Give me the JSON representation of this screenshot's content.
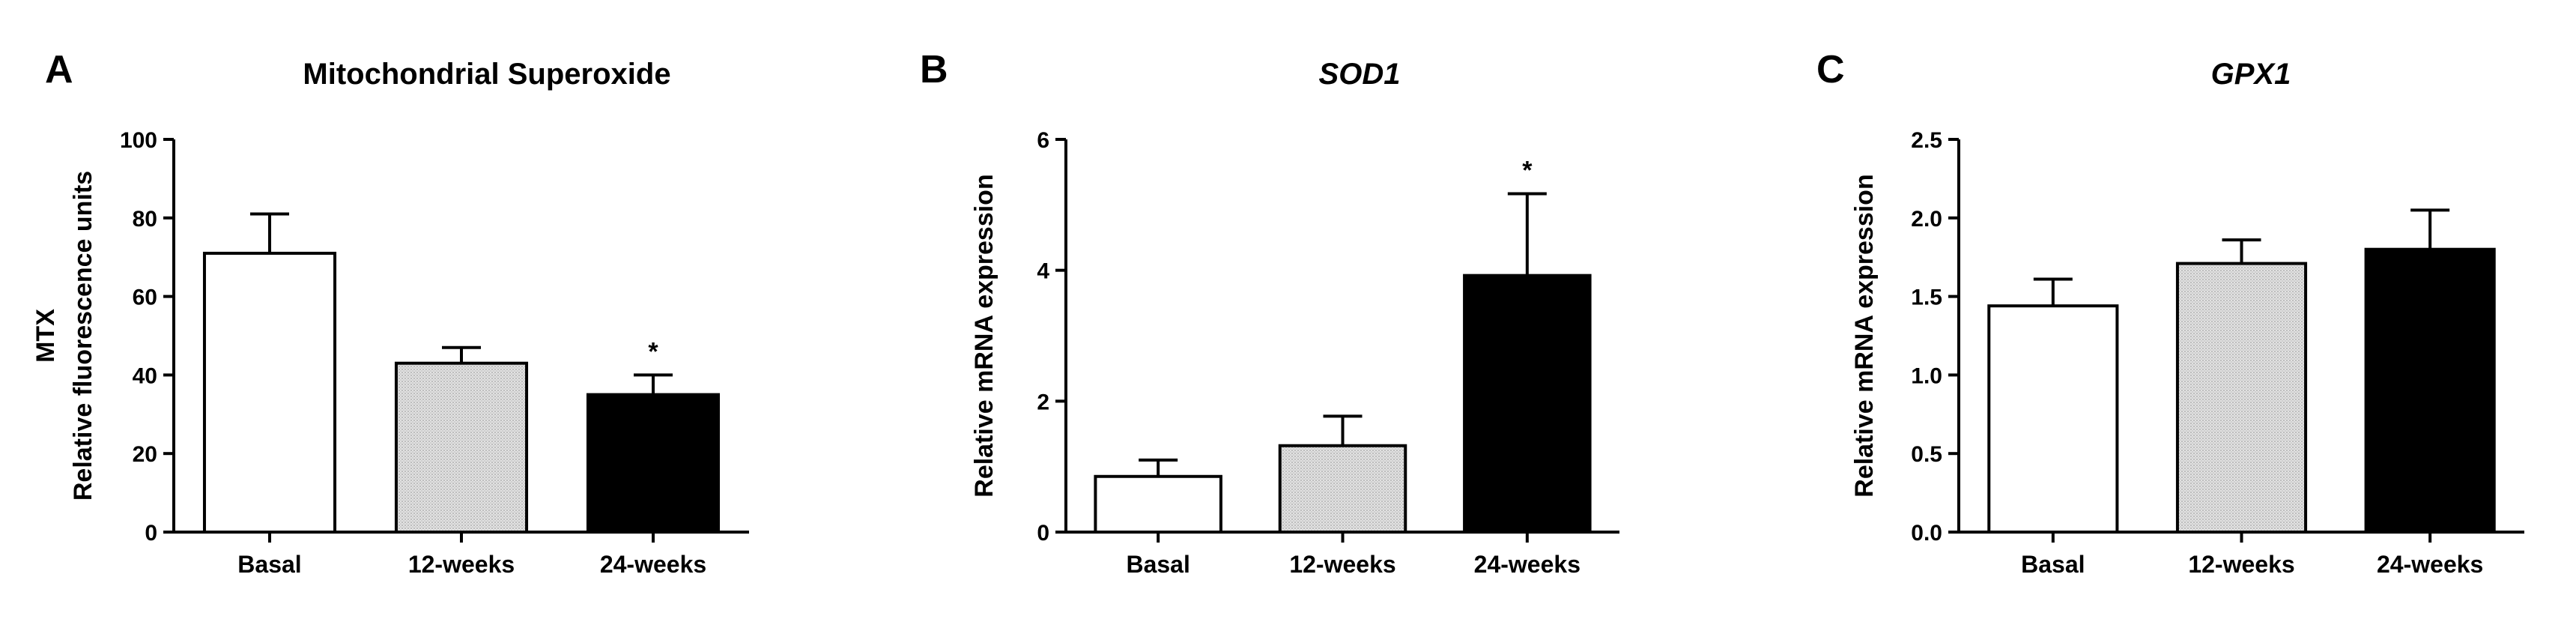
{
  "chart_data": [
    {
      "panel": "A",
      "type": "bar",
      "title": "Mitochondrial Superoxide",
      "title_italic": false,
      "ylabel_lines": [
        "MTX",
        "Relative fluorescence units"
      ],
      "xlabel": "",
      "categories": [
        "Basal",
        "12-weeks",
        "24-weeks"
      ],
      "values": [
        71,
        43,
        35
      ],
      "errors": [
        10,
        4,
        5
      ],
      "significance": [
        "",
        "",
        "*"
      ],
      "ylim": [
        0,
        100
      ],
      "yticks": [
        0,
        20,
        40,
        60,
        80,
        100
      ],
      "ytick_labels": [
        "0",
        "20",
        "40",
        "60",
        "80",
        "100"
      ],
      "fills": [
        "#ffffff",
        "#d9d9d9",
        "#000000"
      ]
    },
    {
      "panel": "B",
      "type": "bar",
      "title": "SOD1",
      "title_italic": true,
      "ylabel_lines": [
        "Relative mRNA expression"
      ],
      "xlabel": "",
      "categories": [
        "Basal",
        "12-weeks",
        "24-weeks"
      ],
      "values": [
        0.85,
        1.32,
        3.92
      ],
      "errors": [
        0.25,
        0.45,
        1.25
      ],
      "significance": [
        "",
        "",
        "*"
      ],
      "ylim": [
        0,
        6
      ],
      "yticks": [
        0,
        2,
        4,
        6
      ],
      "ytick_labels": [
        "0",
        "2",
        "4",
        "6"
      ],
      "fills": [
        "#ffffff",
        "#d9d9d9",
        "#000000"
      ]
    },
    {
      "panel": "C",
      "type": "bar",
      "title": "GPX1",
      "title_italic": true,
      "ylabel_lines": [
        "Relative mRNA expression"
      ],
      "xlabel": "",
      "categories": [
        "Basal",
        "12-weeks",
        "24-weeks"
      ],
      "values": [
        1.44,
        1.71,
        1.8
      ],
      "errors": [
        0.17,
        0.15,
        0.25
      ],
      "significance": [
        "",
        "",
        ""
      ],
      "ylim": [
        0,
        2.5
      ],
      "yticks": [
        0,
        0.5,
        1.0,
        1.5,
        2.0,
        2.5
      ],
      "ytick_labels": [
        "0.0",
        "0.5",
        "1.0",
        "1.5",
        "2.0",
        "2.5"
      ],
      "fills": [
        "#ffffff",
        "#d9d9d9",
        "#000000"
      ]
    }
  ]
}
